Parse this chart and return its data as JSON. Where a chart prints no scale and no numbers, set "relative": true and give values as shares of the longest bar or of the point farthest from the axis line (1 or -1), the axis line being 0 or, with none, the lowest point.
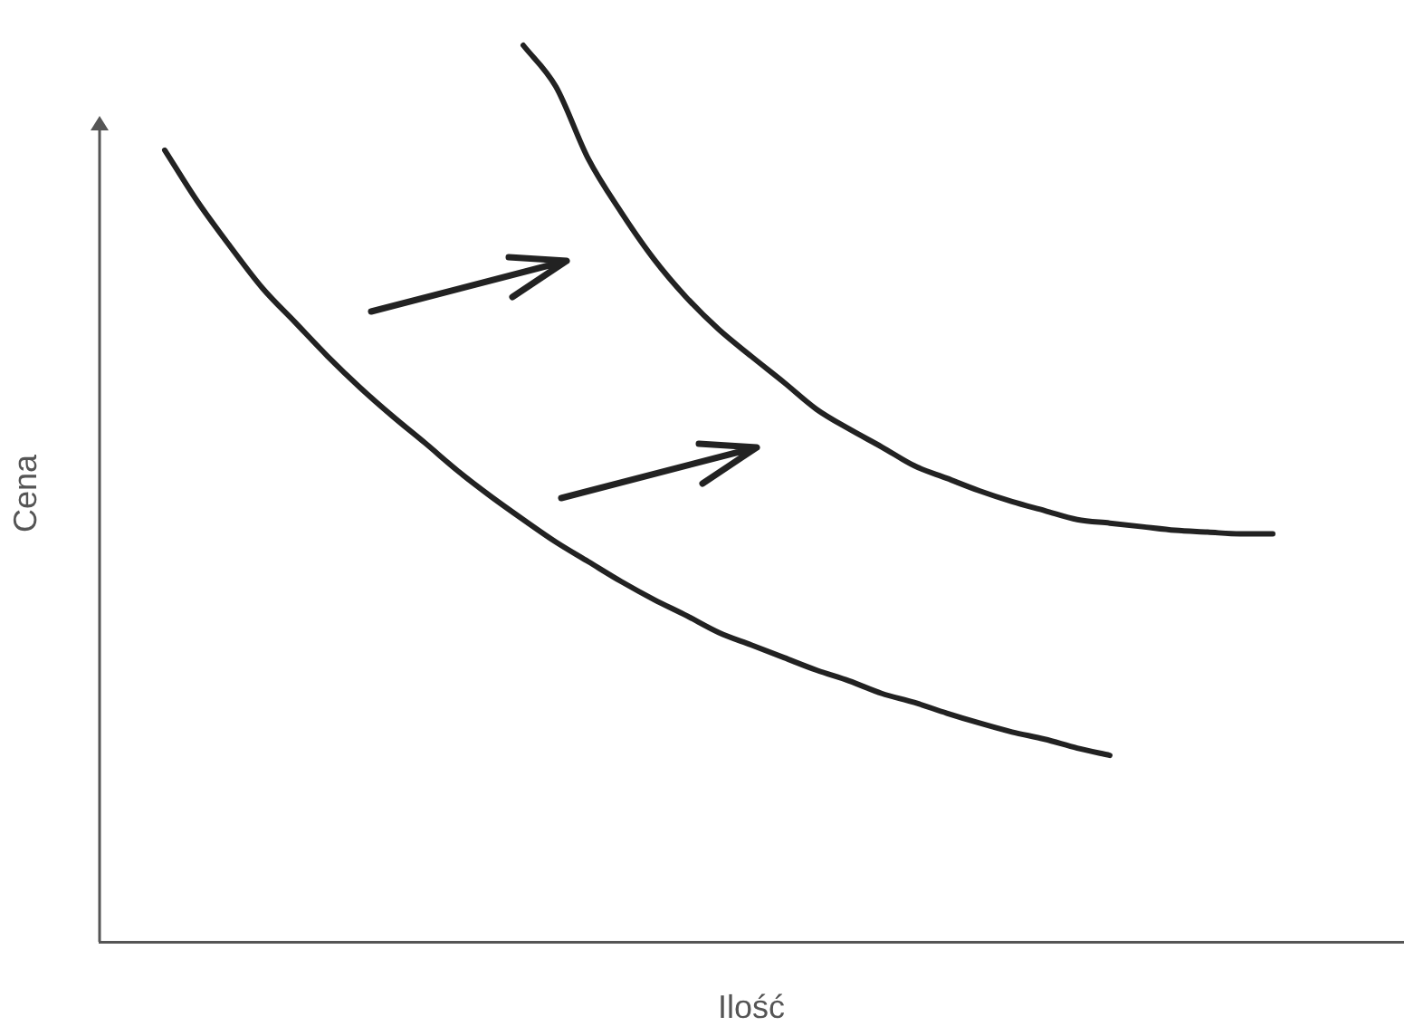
{
  "chart_data": {
    "type": "line",
    "relative": true,
    "xlabel": "Ilość",
    "ylabel": "Cena",
    "grid": false,
    "legend": false,
    "marker": "none",
    "line_style": "solid",
    "categories": [
      null,
      null,
      null,
      null,
      null,
      null,
      null,
      null,
      null,
      null,
      null,
      null,
      null,
      null,
      null,
      null,
      null,
      null,
      null,
      null,
      null,
      null,
      null,
      null,
      null,
      null,
      null,
      null,
      null,
      null,
      null,
      null,
      null,
      null,
      null,
      null,
      null,
      null,
      null,
      null,
      null
    ],
    "series": [
      {
        "color": "#222222",
        "values": [
          null,
          null,
          0.883,
          0.826,
          0.776,
          0.729,
          0.691,
          0.653,
          0.618,
          0.586,
          0.556,
          0.525,
          0.497,
          0.471,
          0.446,
          0.424,
          0.402,
          0.382,
          0.364,
          0.345,
          0.331,
          0.317,
          0.303,
          0.291,
          0.277,
          0.267,
          0.255,
          0.244,
          0.234,
          0.226,
          0.216,
          0.208,
          null,
          null,
          null,
          null,
          null,
          null,
          null,
          null,
          null
        ]
      },
      {
        "color": "#222222",
        "values": [
          null,
          null,
          null,
          null,
          null,
          null,
          null,
          null,
          null,
          null,
          null,
          null,
          null,
          1,
          0.954,
          0.873,
          0.814,
          0.762,
          0.719,
          0.683,
          0.653,
          0.624,
          0.594,
          0.572,
          0.552,
          0.531,
          0.517,
          0.503,
          0.491,
          0.481,
          0.471,
          0.467,
          0.463,
          0.459,
          0.457,
          0.455,
          0.455,
          null,
          null,
          null,
          null
        ]
      }
    ]
  }
}
